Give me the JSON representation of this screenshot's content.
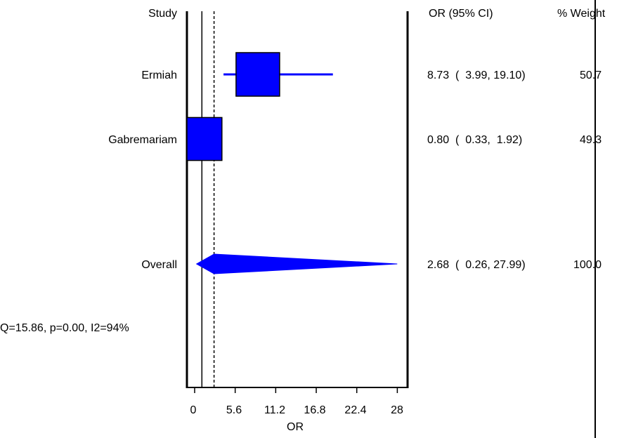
{
  "chart_data": {
    "type": "forest",
    "headers": {
      "study": "Study",
      "or_ci": "OR (95% CI)",
      "weight": "% Weight"
    },
    "xlabel": "OR",
    "xlim": [
      0,
      28
    ],
    "xticks": [
      "0",
      "5.6",
      "11.2",
      "16.8",
      "22.4",
      "28"
    ],
    "null_line": 1,
    "pooled_line": 2.68,
    "studies": [
      {
        "name": "Ermiah",
        "or": 8.73,
        "ci_low": 3.99,
        "ci_high": 19.1,
        "weight": 50.7,
        "or_ci_text": "8.73  (  3.99, 19.10)",
        "weight_text": "50.7"
      },
      {
        "name": "Gabremariam",
        "or": 0.8,
        "ci_low": 0.33,
        "ci_high": 1.92,
        "weight": 49.3,
        "or_ci_text": "0.80  (  0.33,  1.92)",
        "weight_text": "49.3"
      }
    ],
    "overall": {
      "name": "Overall",
      "or": 2.68,
      "ci_low": 0.26,
      "ci_high": 27.99,
      "weight": 100.0,
      "or_ci_text": "2.68  (  0.26, 27.99)",
      "weight_text": "100.0"
    },
    "heterogeneity": "Q=15.86, p=0.00, I2=94%",
    "colors": {
      "marker": "#0000ff",
      "axis": "#000000"
    }
  }
}
